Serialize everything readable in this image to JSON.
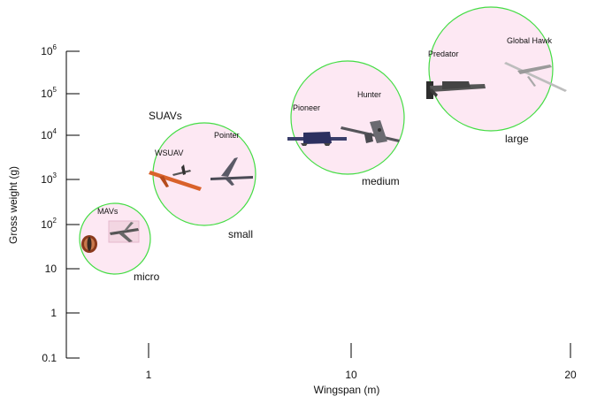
{
  "chart_data": {
    "type": "scatter",
    "title": "",
    "xlabel": "Wingspan (m)",
    "ylabel": "Gross weight (g)",
    "x_ticks": [
      "1",
      "10",
      "20"
    ],
    "y_ticks": [
      {
        "base": "0.1",
        "exp": ""
      },
      {
        "base": "1",
        "exp": ""
      },
      {
        "base": "10",
        "exp": ""
      },
      {
        "base": "10",
        "exp": "2"
      },
      {
        "base": "10",
        "exp": "3"
      },
      {
        "base": "10",
        "exp": "4"
      },
      {
        "base": "10",
        "exp": "5"
      },
      {
        "base": "10",
        "exp": "6"
      }
    ],
    "group_label": "SUAVs",
    "classes": [
      {
        "name": "micro",
        "fill": "#fde8f3",
        "stroke": "#44dd44"
      },
      {
        "name": "small",
        "fill": "#fde8f3",
        "stroke": "#44dd44"
      },
      {
        "name": "medium",
        "fill": "#fde8f3",
        "stroke": "#44dd44"
      },
      {
        "name": "large",
        "fill": "#fde8f3",
        "stroke": "#44dd44"
      }
    ],
    "aircraft": [
      {
        "name": "MAVs",
        "class": "micro"
      },
      {
        "name": "WSUAV",
        "class": "small"
      },
      {
        "name": "Pointer",
        "class": "small"
      },
      {
        "name": "Pioneer",
        "class": "medium"
      },
      {
        "name": "Hunter",
        "class": "medium"
      },
      {
        "name": "Predator",
        "class": "large"
      },
      {
        "name": "Global Hawk",
        "class": "large"
      }
    ],
    "grid": false,
    "legend": "none"
  }
}
